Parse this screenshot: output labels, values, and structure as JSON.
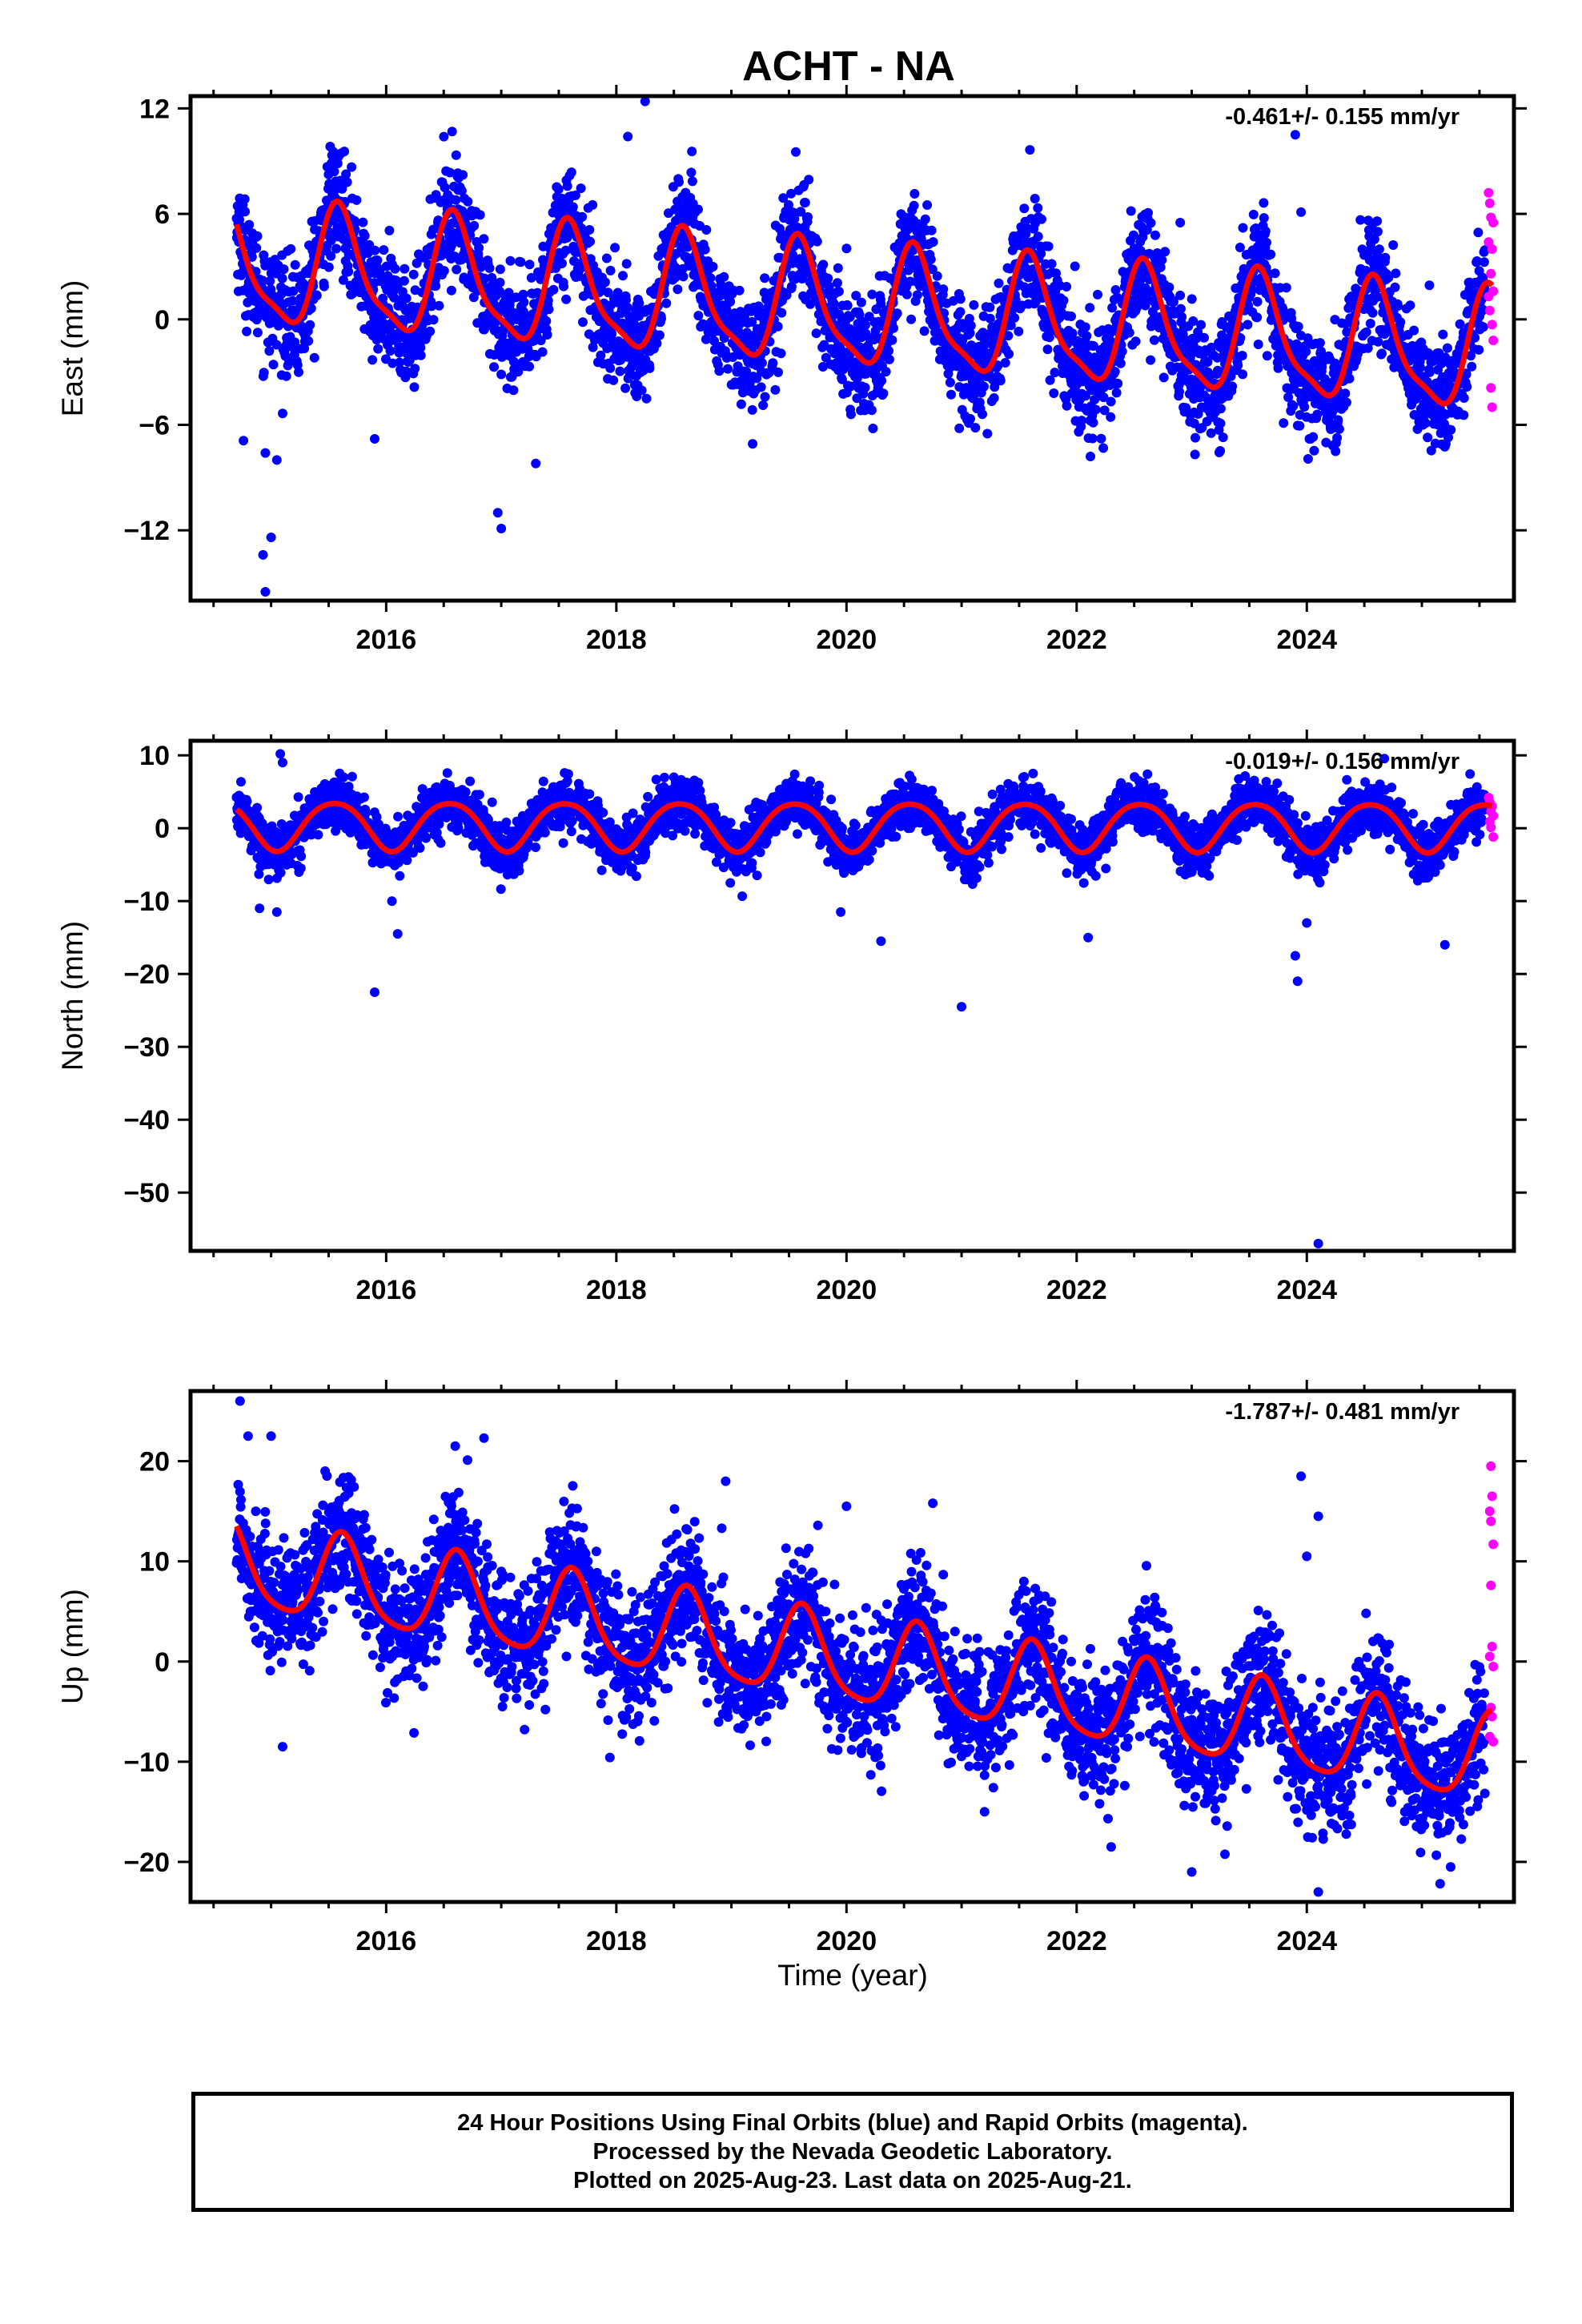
{
  "figure": {
    "title": "ACHT - NA",
    "xlabel": "Time (year)",
    "caption": [
      "24 Hour Positions Using Final Orbits (blue) and Rapid Orbits (magenta).",
      "Processed by the Nevada Geodetic Laboratory.",
      "Plotted on 2025-Aug-23. Last data on 2025-Aug-21."
    ],
    "colors": {
      "final": "#0000ff",
      "rapid": "#ff00ff",
      "model": "#ff0000",
      "axis": "#000000"
    }
  },
  "chart_data": [
    {
      "type": "scatter",
      "ylabel": "East (mm)",
      "rate_label": "-0.461+/- 0.155 mm/yr",
      "xlim": [
        2014.3,
        2025.8
      ],
      "ylim": [
        -16,
        12.7
      ],
      "yticks": [
        12,
        6,
        0,
        -6,
        -12
      ],
      "ytick_labels": [
        "12",
        "6",
        "0",
        "−6",
        "−12"
      ],
      "xticks": [
        2016,
        2018,
        2020,
        2022,
        2024
      ],
      "model": {
        "offset": 3.0,
        "trend_per_yr": -0.461,
        "ref_year": 2014.7,
        "annual_amp": 3.3,
        "annual_peak": 0.6,
        "semi_amp": 0.9,
        "semi_peak": 0.55
      },
      "scatter_sd": 1.6,
      "x_start": 2014.7,
      "x_end": 2025.55,
      "rapid_start": 2025.56,
      "outliers": [
        [
          2014.76,
          -6.9
        ],
        [
          2014.95,
          -7.6
        ],
        [
          2015.05,
          -8.0
        ],
        [
          2015.0,
          -12.4
        ],
        [
          2014.93,
          -13.4
        ],
        [
          2014.95,
          -15.5
        ],
        [
          2016.97,
          -11.0
        ],
        [
          2017.0,
          -11.9
        ],
        [
          2017.3,
          -8.2
        ],
        [
          2015.9,
          -6.8
        ],
        [
          2018.25,
          12.4
        ],
        [
          2018.1,
          10.4
        ],
        [
          2023.9,
          10.5
        ],
        [
          2023.95,
          6.1
        ],
        [
          2022.12,
          -7.8
        ],
        [
          2020.98,
          -6.2
        ],
        [
          2022.9,
          5.5
        ]
      ],
      "rapid": [
        [
          2025.58,
          7.2
        ],
        [
          2025.59,
          6.6
        ],
        [
          2025.6,
          5.8
        ],
        [
          2025.62,
          5.5
        ],
        [
          2025.58,
          4.4
        ],
        [
          2025.61,
          4.0
        ],
        [
          2025.6,
          2.6
        ],
        [
          2025.62,
          1.6
        ],
        [
          2025.59,
          0.5
        ],
        [
          2025.61,
          -0.3
        ],
        [
          2025.62,
          -1.2
        ],
        [
          2025.6,
          -3.9
        ],
        [
          2025.61,
          -5.0
        ],
        [
          2025.58,
          1.3
        ]
      ]
    },
    {
      "type": "scatter",
      "ylabel": "North (mm)",
      "rate_label": "-0.019+/- 0.156 mm/yr",
      "xlim": [
        2014.3,
        2025.8
      ],
      "ylim": [
        -58,
        12
      ],
      "yticks": [
        10,
        0,
        -10,
        -20,
        -30,
        -40,
        -50
      ],
      "ytick_labels": [
        "10",
        "0",
        "−10",
        "−20",
        "−30",
        "−40",
        "−50"
      ],
      "xticks": [
        2016,
        2018,
        2020,
        2022,
        2024
      ],
      "model": {
        "offset": 0.5,
        "trend_per_yr": -0.019,
        "ref_year": 2014.7,
        "annual_amp": 3.3,
        "annual_peak": 0.55,
        "semi_amp": 0.4,
        "semi_peak": 0.3
      },
      "scatter_sd": 1.7,
      "x_start": 2014.7,
      "x_end": 2025.55,
      "rapid_start": 2025.56,
      "outliers": [
        [
          2014.9,
          -11.0
        ],
        [
          2015.05,
          -11.5
        ],
        [
          2015.08,
          10.2
        ],
        [
          2015.1,
          9.0
        ],
        [
          2015.9,
          -22.5
        ],
        [
          2016.1,
          -14.5
        ],
        [
          2016.05,
          -10.0
        ],
        [
          2019.95,
          -11.5
        ],
        [
          2020.3,
          -15.5
        ],
        [
          2021.0,
          -24.5
        ],
        [
          2022.1,
          -15.0
        ],
        [
          2023.9,
          -17.5
        ],
        [
          2023.92,
          -21.0
        ],
        [
          2024.0,
          -13.0
        ],
        [
          2024.1,
          -57.0
        ],
        [
          2025.2,
          -16.0
        ],
        [
          2018.5,
          7.0
        ],
        [
          2019.55,
          7.4
        ]
      ],
      "rapid": [
        [
          2025.58,
          4.2
        ],
        [
          2025.59,
          3.6
        ],
        [
          2025.61,
          3.0
        ],
        [
          2025.6,
          2.3
        ],
        [
          2025.62,
          1.7
        ],
        [
          2025.59,
          0.9
        ],
        [
          2025.6,
          0.1
        ],
        [
          2025.62,
          -1.2
        ]
      ]
    },
    {
      "type": "scatter",
      "ylabel": "Up (mm)",
      "rate_label": "-1.787+/- 0.481 mm/yr",
      "xlim": [
        2014.3,
        2025.8
      ],
      "ylim": [
        -24,
        27
      ],
      "yticks": [
        20,
        10,
        0,
        -10,
        -20
      ],
      "ytick_labels": [
        "20",
        "10",
        "0",
        "−10",
        "−20"
      ],
      "xticks": [
        2016,
        2018,
        2020,
        2022,
        2024
      ],
      "model": {
        "offset": 9.5,
        "trend_per_yr": -1.787,
        "ref_year": 2014.7,
        "annual_amp": 4.3,
        "annual_peak": 0.62,
        "semi_amp": 0.8,
        "semi_peak": 0.6
      },
      "scatter_sd": 3.2,
      "x_start": 2014.7,
      "x_end": 2025.55,
      "rapid_start": 2025.56,
      "outliers": [
        [
          2014.73,
          26.0
        ],
        [
          2014.8,
          22.5
        ],
        [
          2015.0,
          22.5
        ],
        [
          2015.1,
          -8.5
        ],
        [
          2016.6,
          21.5
        ],
        [
          2016.85,
          22.3
        ],
        [
          2018.95,
          18.0
        ],
        [
          2020.0,
          15.5
        ],
        [
          2020.75,
          15.8
        ],
        [
          2021.2,
          -15.0
        ],
        [
          2023.0,
          -21.0
        ],
        [
          2023.95,
          18.5
        ],
        [
          2024.0,
          10.5
        ],
        [
          2024.1,
          14.5
        ],
        [
          2024.1,
          -23.0
        ],
        [
          2025.25,
          -20.5
        ],
        [
          2022.3,
          -18.5
        ]
      ],
      "rapid": [
        [
          2025.6,
          19.5
        ],
        [
          2025.61,
          16.5
        ],
        [
          2025.59,
          15.0
        ],
        [
          2025.6,
          14.0
        ],
        [
          2025.62,
          11.7
        ],
        [
          2025.6,
          7.6
        ],
        [
          2025.61,
          1.5
        ],
        [
          2025.59,
          0.5
        ],
        [
          2025.62,
          -0.5
        ],
        [
          2025.6,
          -4.6
        ],
        [
          2025.61,
          -5.5
        ],
        [
          2025.59,
          -7.5
        ],
        [
          2025.62,
          -8.0
        ]
      ]
    }
  ]
}
